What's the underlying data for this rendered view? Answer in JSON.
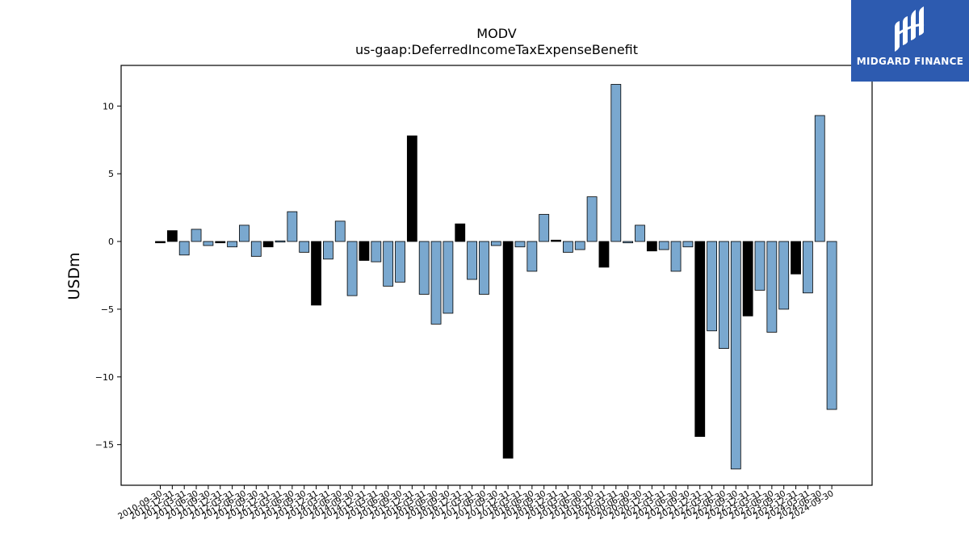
{
  "chart_data": {
    "type": "bar",
    "title": "MODV",
    "subtitle": "us-gaap:DeferredIncomeTaxExpenseBenefit",
    "ylabel": "USDm",
    "ylim": [
      -18,
      13
    ],
    "yticks": [
      10,
      5,
      0,
      -5,
      -10,
      -15
    ],
    "colors": {
      "annual": "#000000",
      "quarterly": "#7aa8cf",
      "edge": "#000000"
    },
    "categories": [
      "2010-09-30",
      "2010-12-31",
      "2011-03-31",
      "2011-06-30",
      "2011-09-30",
      "2011-12-31",
      "2012-03-31",
      "2012-06-30",
      "2012-09-30",
      "2012-12-31",
      "2013-03-31",
      "2013-06-30",
      "2013-09-30",
      "2013-12-31",
      "2014-03-31",
      "2014-06-30",
      "2014-09-30",
      "2014-12-31",
      "2015-03-31",
      "2015-06-30",
      "2015-09-30",
      "2015-12-31",
      "2016-03-31",
      "2016-06-30",
      "2016-09-30",
      "2016-12-31",
      "2017-03-31",
      "2017-06-30",
      "2017-09-30",
      "2017-12-31",
      "2018-03-31",
      "2018-06-30",
      "2018-09-30",
      "2018-12-31",
      "2019-03-31",
      "2019-06-30",
      "2019-09-30",
      "2019-12-31",
      "2020-03-31",
      "2020-06-30",
      "2020-09-30",
      "2020-12-31",
      "2021-03-31",
      "2021-06-30",
      "2021-09-30",
      "2021-12-31",
      "2022-03-31",
      "2022-06-30",
      "2022-09-30",
      "2022-12-31",
      "2023-03-31",
      "2023-06-30",
      "2023-09-30",
      "2023-12-31",
      "2024-03-31",
      "2024-06-30",
      "2024-09-30"
    ],
    "tick_labels": [
      "2010-09-30",
      "2010-12-31",
      "2011-03-31",
      "2011-06-30",
      "2011-09-30",
      "2011-12-31",
      "2012-03-31",
      "2012-06-30",
      "2012-09-30",
      "2012-12-31",
      "2013-03-31",
      "2013-06-30",
      "2013-09-30",
      "2013-12-31",
      "2014-03-31",
      "2014-06-30",
      "2014-09-30",
      "2014-12-31",
      "2015-03-31",
      "2015-06-30",
      "2015-09-30",
      "2015-12-31",
      "2016-03-31",
      "2016-06-30",
      "2016-09-30",
      "2016-12-31",
      "2017-03-31",
      "2017-06-30",
      "2017-09-30",
      "2017-12-31",
      "2018-03-31",
      "2018-06-30",
      "2018-09-30",
      "2018-12-31",
      "2019-03-31",
      "2019-06-30",
      "2019-09-30",
      "2019-12-31",
      "2020-03-31",
      "2020-06-30",
      "2020-09-30",
      "2020-12-31",
      "2021-03-31",
      "2021-06-30",
      "2021-09-30",
      "2021-12-31",
      "2022-03-31",
      "2022-06-30",
      "2022-09-30",
      "2022-12-31",
      "2023-03-31",
      "2023-06-30",
      "2023-09-30",
      "2023-12-31",
      "2024-03-31",
      "2024-06-30",
      "2024-09-30"
    ],
    "values": [
      -0.1,
      0.8,
      -1.0,
      0.9,
      -0.3,
      -0.1,
      -0.4,
      1.2,
      -1.1,
      -0.4,
      0.0,
      2.2,
      -0.8,
      -4.7,
      -1.3,
      1.5,
      -4.0,
      -1.4,
      -1.5,
      -3.3,
      -3.0,
      7.8,
      -3.9,
      -6.1,
      -5.3,
      1.3,
      -2.8,
      -3.9,
      -0.3,
      -16.0,
      -0.4,
      -2.2,
      2.0,
      0.1,
      -0.8,
      -0.6,
      3.3,
      -1.9,
      11.6,
      -0.1,
      1.2,
      -0.7,
      -0.6,
      -2.2,
      -0.4,
      -14.4,
      -6.6,
      -7.9,
      -16.8,
      -5.5,
      -3.6,
      -6.7,
      -5.0,
      -2.4,
      -3.8,
      9.3,
      -12.4
    ],
    "annual_flags": [
      true,
      true,
      false,
      false,
      false,
      true,
      false,
      false,
      false,
      true,
      false,
      false,
      false,
      true,
      false,
      false,
      false,
      true,
      false,
      false,
      false,
      true,
      false,
      false,
      false,
      true,
      false,
      false,
      false,
      true,
      false,
      false,
      false,
      true,
      false,
      false,
      false,
      true,
      false,
      false,
      false,
      true,
      false,
      false,
      false,
      true,
      false,
      false,
      false,
      true,
      false,
      false,
      false,
      true,
      false,
      false,
      false
    ],
    "grid": false,
    "legend": "none"
  },
  "logo": {
    "text": "MIDGARD FINANCE"
  }
}
